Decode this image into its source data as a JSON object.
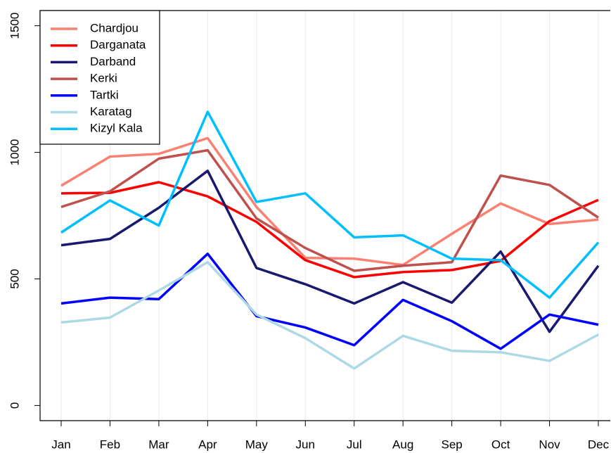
{
  "chart_data": {
    "type": "line",
    "categories": [
      "Jan",
      "Feb",
      "Mar",
      "Apr",
      "May",
      "Jun",
      "Jul",
      "Aug",
      "Sep",
      "Oct",
      "Nov",
      "Dec"
    ],
    "series": [
      {
        "name": "Chardjou",
        "color": "#fa8072",
        "values": [
          868,
          983,
          994,
          1056,
          784,
          583,
          580,
          555,
          678,
          798,
          717,
          734
        ]
      },
      {
        "name": "Darganata",
        "color": "#ff0000",
        "values": [
          838,
          840,
          882,
          826,
          725,
          574,
          507,
          527,
          535,
          571,
          728,
          812
        ]
      },
      {
        "name": "Darband",
        "color": "#191970",
        "values": [
          633,
          658,
          781,
          927,
          543,
          479,
          403,
          487,
          406,
          608,
          291,
          552
        ]
      },
      {
        "name": "Kerki",
        "color": "#c0504d",
        "values": [
          784,
          846,
          975,
          1008,
          739,
          622,
          532,
          552,
          566,
          908,
          871,
          742
        ]
      },
      {
        "name": "Tartki",
        "color": "#0000ff",
        "values": [
          403,
          426,
          420,
          599,
          353,
          308,
          238,
          417,
          333,
          224,
          359,
          319
        ]
      },
      {
        "name": "Karatag",
        "color": "#add8e6",
        "values": [
          328,
          347,
          454,
          566,
          359,
          266,
          146,
          275,
          216,
          210,
          176,
          280
        ]
      },
      {
        "name": "Kizyl Kala",
        "color": "#00bfff",
        "values": [
          683,
          810,
          711,
          1160,
          804,
          838,
          664,
          672,
          580,
          574,
          426,
          644
        ]
      }
    ],
    "ylim": [
      -60,
      1560
    ],
    "yticks": [
      0,
      500,
      1000,
      1500
    ],
    "grid": "x",
    "legend": "top-left"
  }
}
